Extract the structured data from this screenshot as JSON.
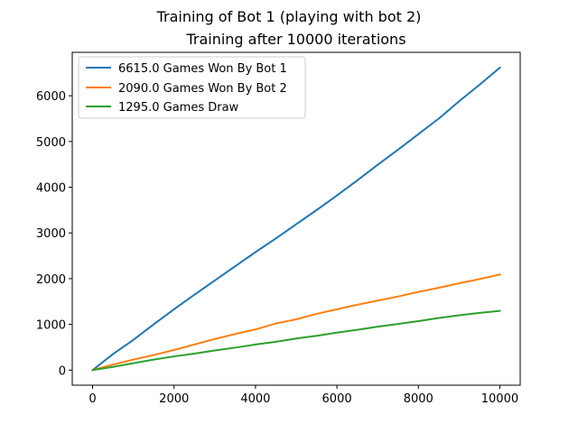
{
  "chart_data": {
    "type": "line",
    "suptitle": "Training of Bot 1 (playing with bot 2)",
    "title": "Training after 10000 iterations",
    "xlabel": "",
    "ylabel": "",
    "xlim": [
      -500,
      10500
    ],
    "ylim": [
      -330,
      6950
    ],
    "xticks": [
      0,
      2000,
      4000,
      6000,
      8000,
      10000
    ],
    "yticks": [
      0,
      1000,
      2000,
      3000,
      4000,
      5000,
      6000
    ],
    "grid": false,
    "legend_position": "upper-left",
    "series": [
      {
        "name": "6615.0 Games Won By Bot 1",
        "color": "#1f77b4",
        "x": [
          0,
          500,
          1000,
          1500,
          2000,
          2500,
          3000,
          3500,
          4000,
          4500,
          5000,
          5500,
          6000,
          6500,
          7000,
          7500,
          8000,
          8500,
          9000,
          9500,
          10000
        ],
        "y": [
          0,
          350,
          660,
          1000,
          1330,
          1650,
          1960,
          2270,
          2580,
          2880,
          3190,
          3500,
          3820,
          4150,
          4490,
          4820,
          5160,
          5500,
          5880,
          6240,
          6615
        ]
      },
      {
        "name": "2090.0 Games Won By Bot 2",
        "color": "#ff7f0e",
        "x": [
          0,
          500,
          1000,
          1500,
          2000,
          2500,
          3000,
          3500,
          4000,
          4500,
          5000,
          5500,
          6000,
          6500,
          7000,
          7500,
          8000,
          8500,
          9000,
          9500,
          10000
        ],
        "y": [
          0,
          120,
          230,
          330,
          440,
          560,
          680,
          790,
          890,
          1020,
          1110,
          1230,
          1330,
          1430,
          1520,
          1610,
          1710,
          1800,
          1900,
          1990,
          2090
        ]
      },
      {
        "name": "1295.0 Games Draw",
        "color": "#2ca02c",
        "x": [
          0,
          500,
          1000,
          1500,
          2000,
          2500,
          3000,
          3500,
          4000,
          4500,
          5000,
          5500,
          6000,
          6500,
          7000,
          7500,
          8000,
          8500,
          9000,
          9500,
          10000
        ],
        "y": [
          0,
          70,
          150,
          230,
          300,
          360,
          430,
          490,
          560,
          620,
          690,
          750,
          820,
          880,
          950,
          1010,
          1070,
          1140,
          1200,
          1250,
          1295
        ]
      }
    ]
  }
}
